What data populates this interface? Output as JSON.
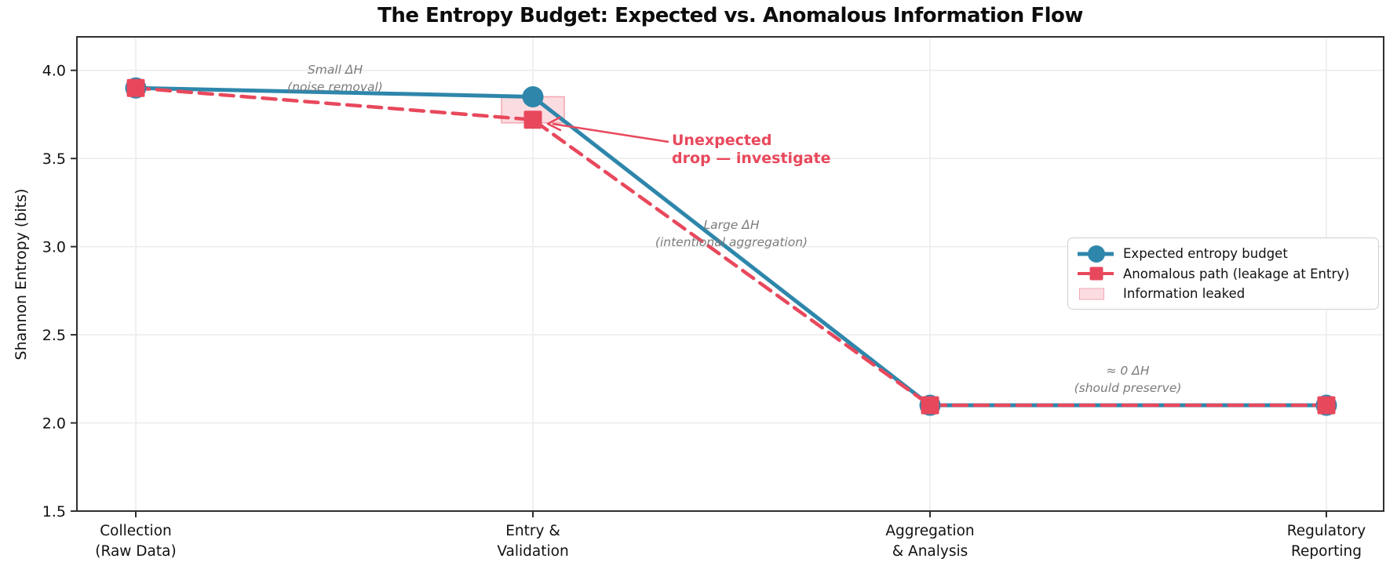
{
  "chart_data": {
    "type": "line",
    "title": "The Entropy Budget: Expected vs. Anomalous Information Flow",
    "xlabel": "",
    "ylabel": "Shannon Entropy (bits)",
    "categories": [
      "Collection\n(Raw Data)",
      "Entry &\nValidation",
      "Aggregation\n& Analysis",
      "Regulatory\nReporting"
    ],
    "series": [
      {
        "name": "Expected entropy budget",
        "values": [
          3.9,
          3.85,
          2.1,
          2.1
        ],
        "color": "#2E86AB",
        "line_style": "solid",
        "marker": "circle"
      },
      {
        "name": "Anomalous path (leakage at Entry)",
        "values": [
          3.9,
          3.72,
          2.1,
          2.1
        ],
        "color": "#E8485C",
        "line_style": "dashed",
        "marker": "square"
      }
    ],
    "leak_region": {
      "label": "Information leaked",
      "category_index": 1,
      "from_value": 3.85,
      "to_value": 3.72,
      "fill": "#FBDCE1",
      "border": "#F2A8B2"
    },
    "yticks": [
      "4.0",
      "3.5",
      "3.0",
      "2.5",
      "2.0",
      "1.5"
    ],
    "ylim": [
      1.5,
      4.19
    ],
    "grid": true,
    "legend_position": "center right",
    "annotations": [
      {
        "id": "small-dh",
        "text": "Small ΔH\n(noise removal)",
        "color": "#7b7b7b",
        "style": "italic"
      },
      {
        "id": "unexpected-drop",
        "text": "Unexpected\ndrop — investigate",
        "color": "#E8485C",
        "style": "bold",
        "arrow_target": "anomalous point at Entry & Validation"
      },
      {
        "id": "large-dh",
        "text": "Large ΔH\n(intentional aggregation)",
        "color": "#7b7b7b",
        "style": "italic"
      },
      {
        "id": "approx-zero-dh",
        "text": "≈ 0 ΔH\n(should preserve)",
        "color": "#7b7b7b",
        "style": "italic"
      }
    ],
    "colors": {
      "expected": "#2E86AB",
      "anomalous": "#E8485C",
      "leak_fill": "#FBDCE1",
      "leak_border": "#F2A8B2",
      "grid": "#ebebeb",
      "spine": "#2f2f2f",
      "annotation_gray": "#7b7b7b"
    }
  }
}
